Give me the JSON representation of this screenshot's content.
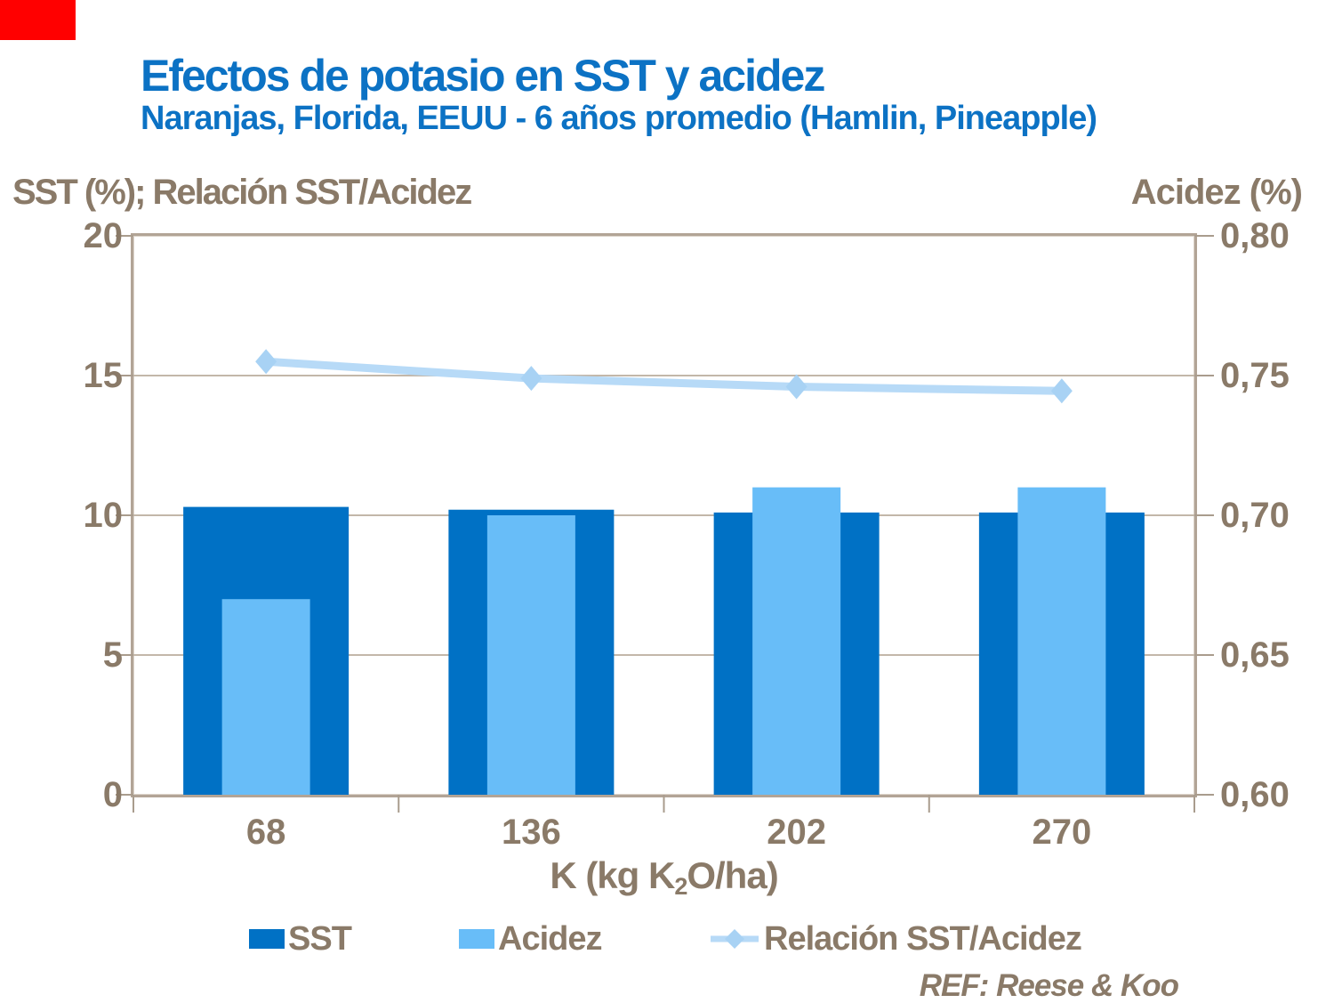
{
  "slide": {
    "title": "Efectos de potasio en SST y acidez",
    "subtitle": "Naranjas, Florida, EEUU - 6 años promedio (Hamlin, Pineapple)",
    "reference": "REF: Reese & Koo",
    "accent_color": "#FF0000",
    "title_color": "#0C72C4",
    "text_color": "#8A7A68"
  },
  "axes": {
    "left_title": "SST (%); Relación SST/Acidez",
    "right_title": "Acidez (%)",
    "x_title_prefix": "K (kg K",
    "x_title_sub": "2",
    "x_title_suffix": "O/ha)"
  },
  "chart_data": {
    "type": "combo-bar-line",
    "title": "Efectos de potasio en SST y acidez",
    "subtitle": "Naranjas, Florida, EEUU - 6 años promedio (Hamlin, Pineapple)",
    "categories": [
      "68",
      "136",
      "202",
      "270"
    ],
    "series": [
      {
        "name": "SST",
        "type": "bar",
        "axis": "left",
        "color": "#0071C5",
        "values": [
          10.3,
          10.2,
          10.1,
          10.1
        ]
      },
      {
        "name": "Acidez",
        "type": "bar",
        "axis": "right",
        "color": "#68BDF8",
        "values": [
          0.67,
          0.7,
          0.71,
          0.71
        ]
      },
      {
        "name": "Relación SST/Acidez",
        "type": "line",
        "axis": "left",
        "color": "#B7DAF7",
        "marker": "diamond",
        "marker_color": "#A8D2F4",
        "values": [
          15.5,
          14.9,
          14.6,
          14.45
        ]
      }
    ],
    "left_axis": {
      "title": "SST (%); Relación SST/Acidez",
      "min": 0,
      "max": 20,
      "tick_labels": [
        "20",
        "15",
        "10",
        "5",
        "0"
      ]
    },
    "right_axis": {
      "title": "Acidez (%)",
      "min": 0.6,
      "max": 0.8,
      "tick_labels": [
        "0,80",
        "0,75",
        "0,70",
        "0,65",
        "0,60"
      ]
    },
    "x_axis": {
      "title": "K (kg K2O/ha)",
      "tick_labels": [
        "68",
        "136",
        "202",
        "270"
      ]
    },
    "legend": {
      "position": "bottom",
      "entries": [
        "SST",
        "Acidez",
        "Relación SST/Acidez"
      ]
    },
    "grid": "horizontal",
    "gridline_color": "#C3B7A9",
    "tick_color": "#A99C8D",
    "plot_border_color": "#B2A496"
  }
}
